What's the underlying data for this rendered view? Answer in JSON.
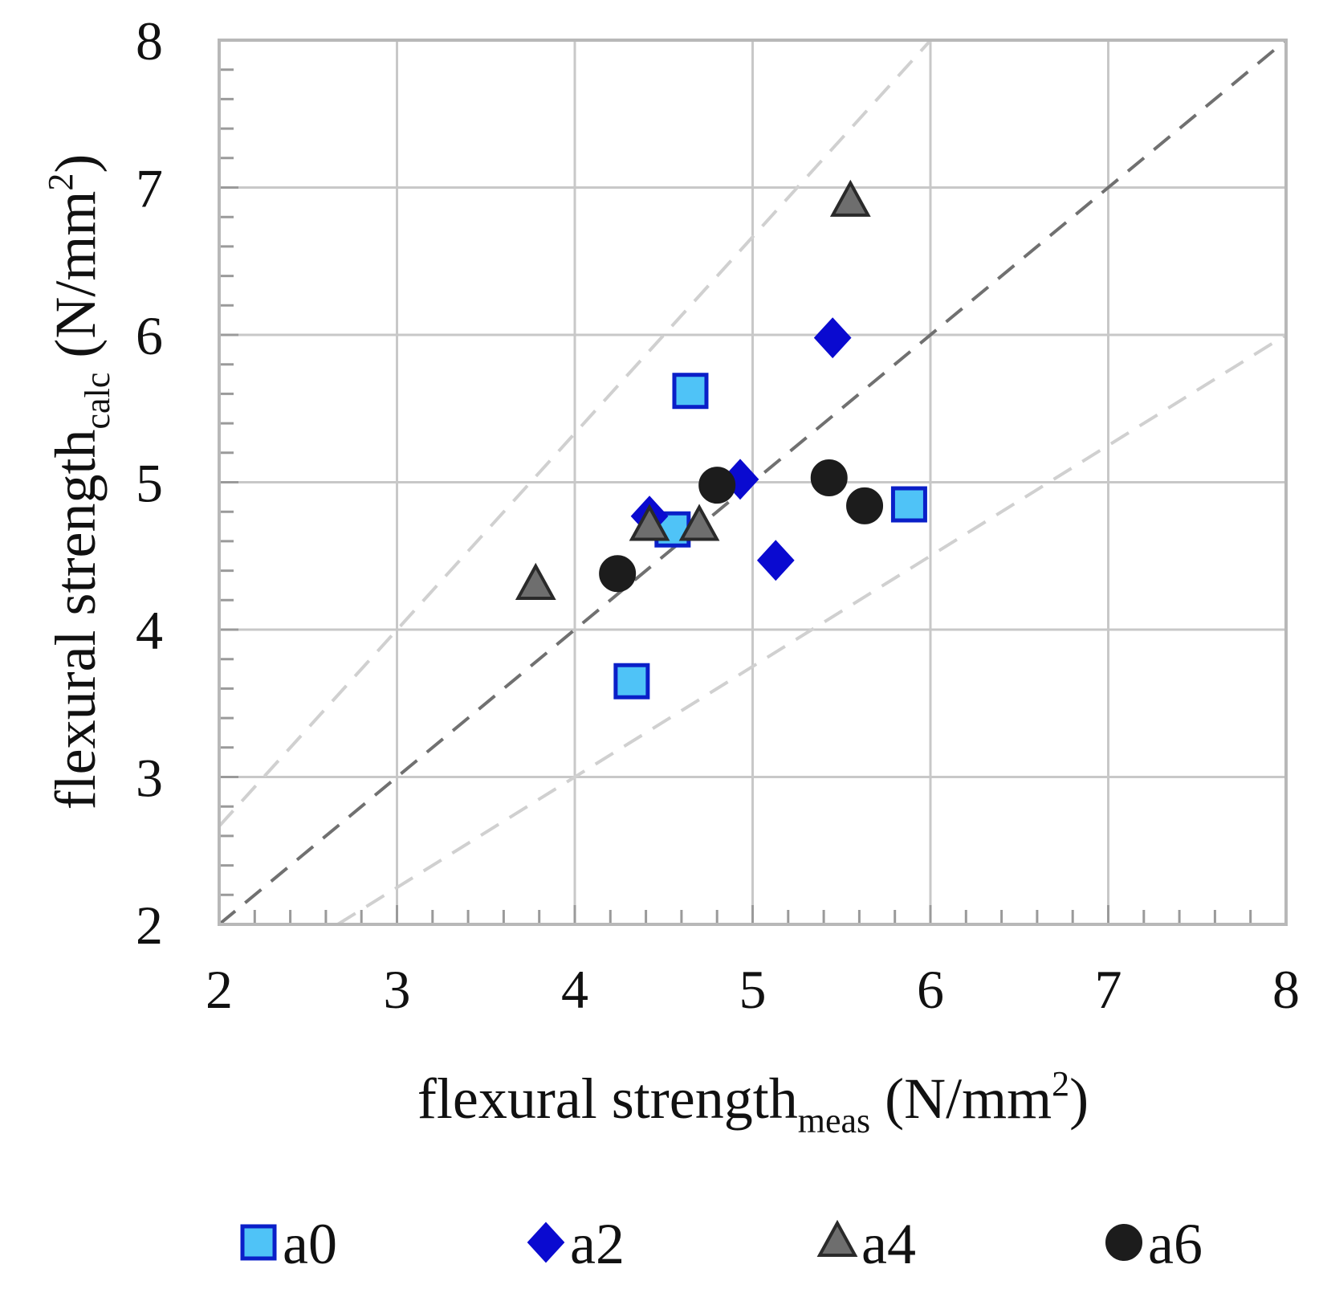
{
  "chart_data": {
    "type": "scatter",
    "xlabel": {
      "base": "flexural strength",
      "sub": "meas",
      "unit_open": " (N/mm",
      "sup": "2",
      "unit_close": ")"
    },
    "ylabel": {
      "base": "flexural strength",
      "sub": "calc",
      "unit_open": " (N/mm",
      "sup": "2",
      "unit_close": ")"
    },
    "xlim": [
      2,
      8
    ],
    "ylim": [
      2,
      8
    ],
    "x_ticks": [
      2,
      3,
      4,
      5,
      6,
      7,
      8
    ],
    "y_ticks": [
      2,
      3,
      4,
      5,
      6,
      7,
      8
    ],
    "x_tick_labels": [
      "2",
      "3",
      "4",
      "5",
      "6",
      "7",
      "8"
    ],
    "y_tick_labels": [
      "2",
      "3",
      "4",
      "5",
      "6",
      "7",
      "8"
    ],
    "minor_ticks_per_unit": 5,
    "grid": true,
    "reference_lines": [
      {
        "name": "equality",
        "slope": 1.0,
        "color": "#707070"
      },
      {
        "name": "upper-bound",
        "slope": 1.333,
        "color": "#d0d0d0"
      },
      {
        "name": "lower-bound",
        "slope": 0.75,
        "color": "#d0d0d0"
      }
    ],
    "series": [
      {
        "name": "a0",
        "marker": "square",
        "fill": "#4fc3f7",
        "stroke": "#0a1fc8",
        "x": [
          4.65,
          4.55,
          4.32,
          5.88
        ],
        "y": [
          5.62,
          4.68,
          3.65,
          4.85
        ]
      },
      {
        "name": "a2",
        "marker": "diamond",
        "fill": "#0a0ad0",
        "stroke": "#0a0ad0",
        "x": [
          5.45,
          4.93,
          4.42,
          5.13
        ],
        "y": [
          5.98,
          5.02,
          4.77,
          4.47
        ]
      },
      {
        "name": "a4",
        "marker": "triangle",
        "fill": "#6e6e6e",
        "stroke": "#2a2a2a",
        "x": [
          5.55,
          4.42,
          4.7,
          3.78
        ],
        "y": [
          6.9,
          4.7,
          4.7,
          4.3
        ]
      },
      {
        "name": "a6",
        "marker": "circle",
        "fill": "#1c1c1c",
        "stroke": "#1c1c1c",
        "x": [
          4.8,
          5.43,
          5.63,
          4.24
        ],
        "y": [
          4.98,
          5.03,
          4.84,
          4.38
        ]
      }
    ],
    "legend": {
      "placement": "bottom"
    }
  }
}
